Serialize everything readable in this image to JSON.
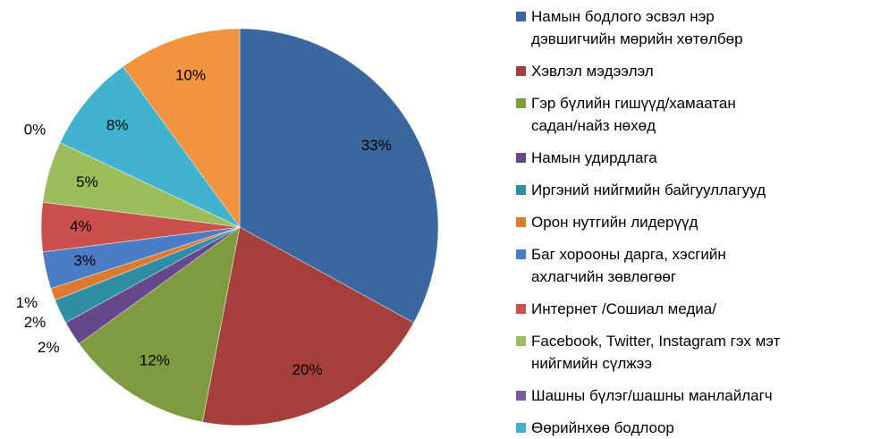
{
  "chart_data": {
    "type": "pie",
    "categories": [
      "Намын бодлого эсвэл нэр\nдэвшигчийн мөрийн хөтөлбөр",
      "Хэвлэл мэдээлэл",
      "Гэр бүлийн гишүүд/хамаатан\nсадан/найз нөхөд",
      "Намын удирдлага",
      "Иргэний нийгмийн байгууллагууд",
      "Орон нутгийн лидерүүд",
      "Баг хорооны дарга, хэсгийн\nахлагчийн зөвлөгөөг",
      "Интернет /Сошиал медиа/",
      "Facebook, Twitter, Instagram гэх мэт\nнийгмийн сүлжээ",
      "Шашны бүлэг/шашны манлайлагч",
      "Өөрийнхөө бодлоор",
      null
    ],
    "values": [
      33,
      20,
      12,
      2,
      2,
      1,
      3,
      4,
      5,
      0,
      8,
      10
    ],
    "value_labels": [
      "33%",
      "20%",
      "12%",
      "2%",
      "2%",
      "1%",
      "3%",
      "4%",
      "5%",
      "0%",
      "8%",
      "10%"
    ],
    "colors": [
      "#3b679e",
      "#a43f3c",
      "#7e9b3f",
      "#67478b",
      "#2f8ea3",
      "#dc7a2f",
      "#4a7dc3",
      "#c9504c",
      "#9cbd5b",
      "#7a5aa2",
      "#41b3cf",
      "#f39340"
    ]
  }
}
